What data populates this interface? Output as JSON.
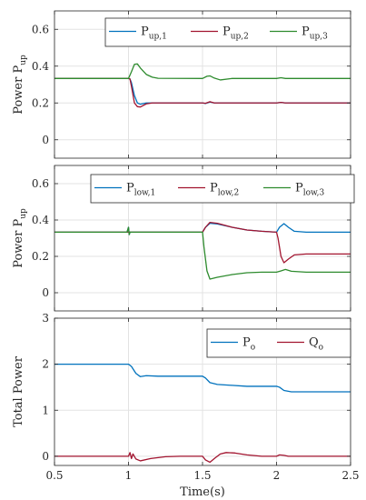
{
  "chart_data": [
    {
      "type": "line",
      "ylabel": "Power P",
      "ylabel_sub": "up",
      "xlim": [
        0.5,
        2.5
      ],
      "ylim": [
        -0.1,
        0.7
      ],
      "xticks": [
        0.5,
        1,
        1.5,
        2,
        2.5
      ],
      "yticks": [
        0,
        0.2,
        0.4,
        0.6
      ],
      "ytick_labels": [
        "0",
        "0.2",
        "0.4",
        "0.6"
      ],
      "grid": true,
      "legend": {
        "placement": "top-right",
        "columns": 3
      },
      "series": [
        {
          "name": "P",
          "name_sub": "up,1",
          "color": "#0072BD",
          "points": [
            [
              0.5,
              0.333
            ],
            [
              1.0,
              0.333
            ],
            [
              1.01,
              0.33
            ],
            [
              1.02,
              0.31
            ],
            [
              1.04,
              0.24
            ],
            [
              1.06,
              0.2
            ],
            [
              1.08,
              0.193
            ],
            [
              1.12,
              0.2
            ],
            [
              1.5,
              0.2
            ],
            [
              1.52,
              0.197
            ],
            [
              1.55,
              0.205
            ],
            [
              1.58,
              0.2
            ],
            [
              2.0,
              0.2
            ],
            [
              2.03,
              0.203
            ],
            [
              2.06,
              0.2
            ],
            [
              2.5,
              0.2
            ]
          ]
        },
        {
          "name": "P",
          "name_sub": "up,2",
          "color": "#A2142F",
          "points": [
            [
              0.5,
              0.333
            ],
            [
              1.0,
              0.333
            ],
            [
              1.01,
              0.33
            ],
            [
              1.02,
              0.29
            ],
            [
              1.04,
              0.2
            ],
            [
              1.06,
              0.18
            ],
            [
              1.08,
              0.178
            ],
            [
              1.12,
              0.195
            ],
            [
              1.16,
              0.2
            ],
            [
              1.5,
              0.2
            ],
            [
              1.52,
              0.198
            ],
            [
              1.55,
              0.207
            ],
            [
              1.58,
              0.2
            ],
            [
              2.0,
              0.2
            ],
            [
              2.03,
              0.203
            ],
            [
              2.06,
              0.2
            ],
            [
              2.5,
              0.2
            ]
          ]
        },
        {
          "name": "P",
          "name_sub": "up,3",
          "color": "#2E8B2E",
          "points": [
            [
              0.5,
              0.333
            ],
            [
              1.0,
              0.333
            ],
            [
              1.02,
              0.37
            ],
            [
              1.04,
              0.41
            ],
            [
              1.06,
              0.412
            ],
            [
              1.08,
              0.39
            ],
            [
              1.12,
              0.355
            ],
            [
              1.16,
              0.34
            ],
            [
              1.2,
              0.334
            ],
            [
              1.5,
              0.333
            ],
            [
              1.53,
              0.345
            ],
            [
              1.55,
              0.347
            ],
            [
              1.58,
              0.335
            ],
            [
              1.62,
              0.325
            ],
            [
              1.7,
              0.333
            ],
            [
              2.0,
              0.333
            ],
            [
              2.03,
              0.337
            ],
            [
              2.06,
              0.333
            ],
            [
              2.5,
              0.333
            ]
          ]
        }
      ]
    },
    {
      "type": "line",
      "ylabel": "Power P",
      "ylabel_sub": "up",
      "xlim": [
        0.5,
        2.5
      ],
      "ylim": [
        -0.1,
        0.7
      ],
      "xticks": [
        0.5,
        1,
        1.5,
        2,
        2.5
      ],
      "yticks": [
        0,
        0.2,
        0.4,
        0.6
      ],
      "ytick_labels": [
        "0",
        "0.2",
        "0.4",
        "0.6"
      ],
      "grid": true,
      "legend": {
        "placement": "top",
        "columns": 3
      },
      "series": [
        {
          "name": "P",
          "name_sub": "low,1",
          "color": "#0072BD",
          "points": [
            [
              0.5,
              0.333
            ],
            [
              0.99,
              0.333
            ],
            [
              1.0,
              0.36
            ],
            [
              1.005,
              0.32
            ],
            [
              1.01,
              0.333
            ],
            [
              1.5,
              0.333
            ],
            [
              1.52,
              0.36
            ],
            [
              1.55,
              0.382
            ],
            [
              1.6,
              0.378
            ],
            [
              1.7,
              0.36
            ],
            [
              1.8,
              0.345
            ],
            [
              1.9,
              0.338
            ],
            [
              2.0,
              0.333
            ],
            [
              2.02,
              0.36
            ],
            [
              2.05,
              0.38
            ],
            [
              2.08,
              0.36
            ],
            [
              2.12,
              0.338
            ],
            [
              2.2,
              0.333
            ],
            [
              2.5,
              0.333
            ]
          ]
        },
        {
          "name": "P",
          "name_sub": "low,2",
          "color": "#A2142F",
          "points": [
            [
              0.5,
              0.333
            ],
            [
              1.5,
              0.333
            ],
            [
              1.52,
              0.36
            ],
            [
              1.55,
              0.387
            ],
            [
              1.6,
              0.382
            ],
            [
              1.7,
              0.36
            ],
            [
              1.8,
              0.345
            ],
            [
              1.9,
              0.338
            ],
            [
              2.0,
              0.333
            ],
            [
              2.01,
              0.3
            ],
            [
              2.03,
              0.2
            ],
            [
              2.05,
              0.165
            ],
            [
              2.08,
              0.185
            ],
            [
              2.12,
              0.208
            ],
            [
              2.2,
              0.213
            ],
            [
              2.5,
              0.213
            ]
          ]
        },
        {
          "name": "P",
          "name_sub": "low,3",
          "color": "#2E8B2E",
          "points": [
            [
              0.5,
              0.333
            ],
            [
              0.99,
              0.333
            ],
            [
              1.0,
              0.36
            ],
            [
              1.005,
              0.32
            ],
            [
              1.01,
              0.333
            ],
            [
              1.5,
              0.333
            ],
            [
              1.51,
              0.25
            ],
            [
              1.53,
              0.12
            ],
            [
              1.55,
              0.075
            ],
            [
              1.6,
              0.085
            ],
            [
              1.7,
              0.1
            ],
            [
              1.8,
              0.11
            ],
            [
              1.9,
              0.113
            ],
            [
              2.0,
              0.113
            ],
            [
              2.03,
              0.12
            ],
            [
              2.06,
              0.128
            ],
            [
              2.1,
              0.118
            ],
            [
              2.2,
              0.113
            ],
            [
              2.5,
              0.113
            ]
          ]
        }
      ]
    },
    {
      "type": "line",
      "ylabel": "Total Power",
      "xlabel": "Time(s)",
      "xlim": [
        0.5,
        2.5
      ],
      "ylim": [
        -0.2,
        3.0
      ],
      "xticks": [
        0.5,
        1,
        1.5,
        2,
        2.5
      ],
      "xtick_labels": [
        "0.5",
        "1",
        "1.5",
        "2",
        "2.5"
      ],
      "yticks": [
        0,
        1,
        2,
        3
      ],
      "ytick_labels": [
        "0",
        "1",
        "2",
        "3"
      ],
      "grid": true,
      "legend": {
        "placement": "top-right",
        "columns": 2
      },
      "series": [
        {
          "name": "P",
          "name_sub": "o",
          "color": "#0072BD",
          "points": [
            [
              0.5,
              2.0
            ],
            [
              1.0,
              2.0
            ],
            [
              1.02,
              1.95
            ],
            [
              1.05,
              1.8
            ],
            [
              1.08,
              1.73
            ],
            [
              1.12,
              1.75
            ],
            [
              1.2,
              1.74
            ],
            [
              1.5,
              1.74
            ],
            [
              1.52,
              1.7
            ],
            [
              1.55,
              1.6
            ],
            [
              1.6,
              1.56
            ],
            [
              1.7,
              1.54
            ],
            [
              1.8,
              1.52
            ],
            [
              2.0,
              1.52
            ],
            [
              2.02,
              1.5
            ],
            [
              2.05,
              1.43
            ],
            [
              2.1,
              1.4
            ],
            [
              2.2,
              1.4
            ],
            [
              2.5,
              1.4
            ]
          ]
        },
        {
          "name": "Q",
          "name_sub": "o",
          "color": "#A2142F",
          "points": [
            [
              0.5,
              0.0
            ],
            [
              1.0,
              0.0
            ],
            [
              1.01,
              0.08
            ],
            [
              1.02,
              -0.05
            ],
            [
              1.03,
              0.05
            ],
            [
              1.05,
              -0.06
            ],
            [
              1.08,
              -0.1
            ],
            [
              1.15,
              -0.05
            ],
            [
              1.25,
              -0.01
            ],
            [
              1.35,
              0.0
            ],
            [
              1.5,
              0.0
            ],
            [
              1.52,
              -0.08
            ],
            [
              1.55,
              -0.13
            ],
            [
              1.58,
              -0.05
            ],
            [
              1.62,
              0.05
            ],
            [
              1.66,
              0.08
            ],
            [
              1.72,
              0.07
            ],
            [
              1.8,
              0.03
            ],
            [
              1.9,
              0.0
            ],
            [
              2.0,
              0.0
            ],
            [
              2.02,
              0.03
            ],
            [
              2.05,
              0.02
            ],
            [
              2.08,
              0.0
            ],
            [
              2.5,
              0.0
            ]
          ]
        }
      ]
    }
  ]
}
